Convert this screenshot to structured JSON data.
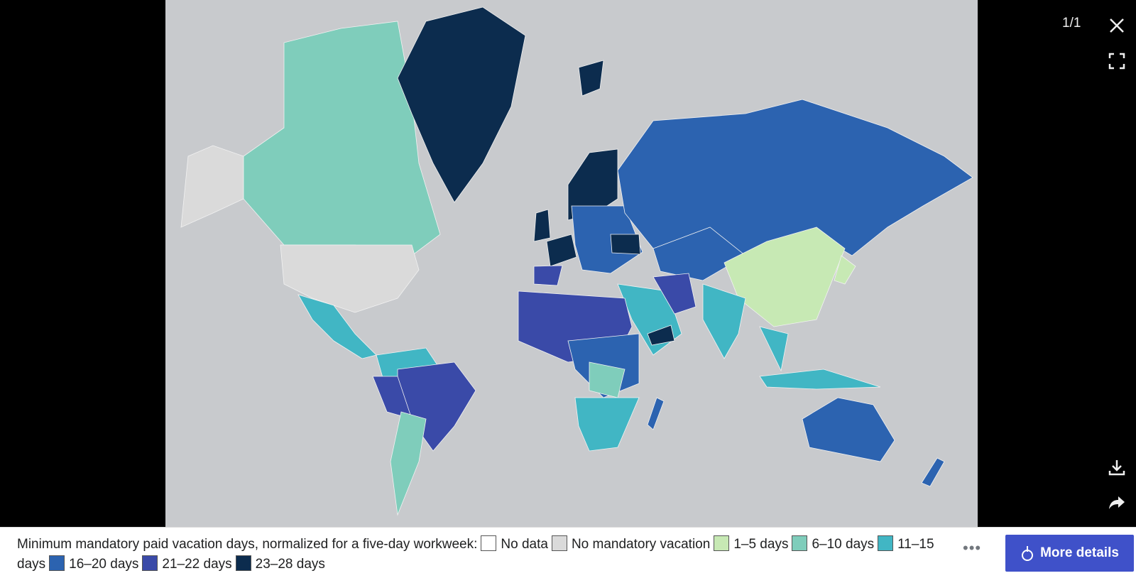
{
  "viewer": {
    "counter": "1/1"
  },
  "caption": {
    "text": "Minimum mandatory paid vacation days, normalized for a five-day workweek:",
    "legend": [
      {
        "label": "No data",
        "color": "#ffffff"
      },
      {
        "label": "No mandatory vacation",
        "color": "#dadada"
      },
      {
        "label": "1–5 days",
        "color": "#c7e9b4"
      },
      {
        "label": "6–10 days",
        "color": "#7fcdbb"
      },
      {
        "label": "11–15 days",
        "color": "#41b6c4"
      },
      {
        "label": "16–20 days",
        "color": "#2c63b0"
      },
      {
        "label": "21–22 days",
        "color": "#3a4aa8"
      },
      {
        "label": "23–28 days",
        "color": "#0c2c4e"
      }
    ]
  },
  "button": "More details"
}
